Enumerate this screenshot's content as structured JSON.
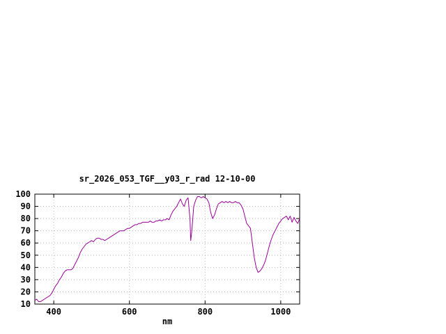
{
  "window": {
    "background": "#ffffff"
  },
  "chart_data": {
    "type": "line",
    "title": "sr_2026_053_TGF__y03_r_rad 12-10-00",
    "xlabel": "nm",
    "ylabel": "",
    "xlim": [
      350,
      1050
    ],
    "ylim": [
      10,
      100
    ],
    "xticks": [
      400,
      600,
      800,
      1000
    ],
    "yticks": [
      10,
      20,
      30,
      40,
      50,
      60,
      70,
      80,
      90,
      100
    ],
    "grid": true,
    "legend": "none",
    "line_color": "#990099",
    "border_color": "#000000",
    "grid_color": "#b8b8b8",
    "x": [
      350,
      355,
      360,
      365,
      370,
      375,
      380,
      385,
      390,
      395,
      400,
      405,
      410,
      415,
      420,
      425,
      430,
      435,
      440,
      445,
      450,
      455,
      460,
      465,
      470,
      475,
      480,
      485,
      490,
      495,
      500,
      505,
      510,
      515,
      520,
      525,
      530,
      535,
      540,
      545,
      550,
      555,
      560,
      565,
      570,
      575,
      580,
      585,
      590,
      595,
      600,
      605,
      610,
      615,
      620,
      625,
      630,
      635,
      640,
      645,
      650,
      655,
      660,
      665,
      670,
      675,
      680,
      685,
      690,
      695,
      700,
      705,
      710,
      715,
      720,
      725,
      730,
      735,
      740,
      745,
      750,
      755,
      760,
      762,
      765,
      770,
      775,
      780,
      785,
      790,
      795,
      800,
      805,
      810,
      815,
      820,
      825,
      830,
      835,
      840,
      845,
      850,
      855,
      860,
      865,
      870,
      875,
      880,
      885,
      890,
      895,
      900,
      905,
      910,
      915,
      920,
      925,
      930,
      935,
      940,
      945,
      950,
      955,
      960,
      965,
      970,
      975,
      980,
      985,
      990,
      995,
      1000,
      1005,
      1010,
      1015,
      1020,
      1025,
      1030,
      1035,
      1040,
      1045,
      1050
    ],
    "y": [
      13,
      14,
      12,
      12,
      13,
      14,
      15,
      16,
      17,
      19,
      22,
      25,
      27,
      30,
      32,
      35,
      37,
      38,
      38,
      38,
      39,
      42,
      45,
      48,
      52,
      55,
      57,
      59,
      60,
      61,
      62,
      61,
      63,
      64,
      64,
      63,
      63,
      62,
      63,
      64,
      65,
      66,
      67,
      68,
      69,
      70,
      70,
      70,
      71,
      72,
      72,
      73,
      74,
      75,
      75,
      76,
      76,
      77,
      77,
      77,
      77,
      78,
      77,
      77,
      78,
      78,
      79,
      78,
      79,
      79,
      80,
      79,
      83,
      86,
      88,
      90,
      93,
      96,
      92,
      90,
      95,
      97,
      80,
      62,
      70,
      90,
      95,
      98,
      98,
      97,
      98,
      97,
      96,
      93,
      85,
      80,
      83,
      88,
      92,
      93,
      94,
      93,
      94,
      93,
      94,
      93,
      93,
      94,
      93,
      93,
      91,
      88,
      82,
      76,
      74,
      72,
      60,
      48,
      40,
      36,
      37,
      39,
      42,
      46,
      52,
      58,
      63,
      67,
      70,
      73,
      76,
      78,
      80,
      81,
      82,
      79,
      82,
      77,
      81,
      78,
      76,
      80
    ]
  }
}
